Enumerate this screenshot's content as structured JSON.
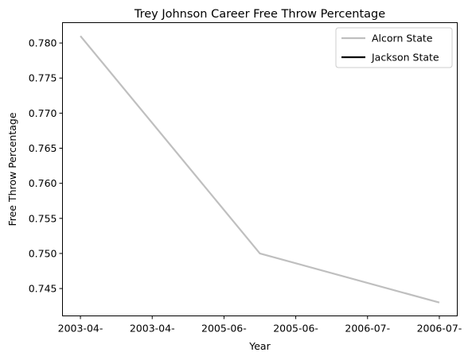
{
  "chart_data": {
    "type": "line",
    "title": "Trey Johnson Career Free Throw Percentage",
    "xlabel": "Year",
    "ylabel": "Free Throw Percentage",
    "x_tick_labels": [
      "2003-04-",
      "2003-04-",
      "2005-06-",
      "2005-06-",
      "2006-07-",
      "2006-07-"
    ],
    "y_ticks": [
      0.745,
      0.75,
      0.755,
      0.76,
      0.765,
      0.77,
      0.775,
      0.78
    ],
    "ylim": [
      0.7411,
      0.7829
    ],
    "xlim": [
      -0.25,
      5.25
    ],
    "grid": false,
    "legend_position": "top-right",
    "series": [
      {
        "name": "Alcorn State",
        "color": "#bfbfbf",
        "x": [
          0,
          2.5,
          5
        ],
        "values": [
          0.781,
          0.75,
          0.743
        ]
      },
      {
        "name": "Jackson State",
        "color": "#000000",
        "x": [],
        "values": []
      }
    ]
  }
}
